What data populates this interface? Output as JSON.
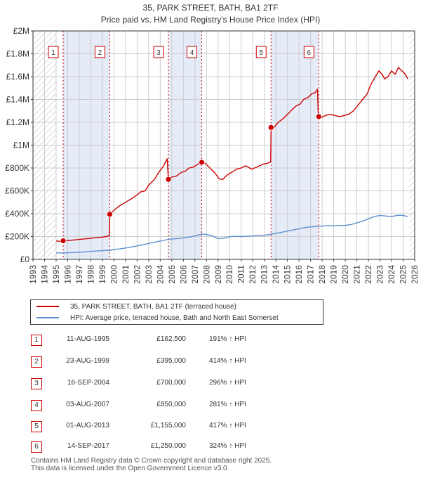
{
  "header": {
    "title": "35, PARK STREET, BATH, BA1 2TF",
    "subtitle": "Price paid vs. HM Land Registry's House Price Index (HPI)"
  },
  "colors": {
    "property": "#cc0000",
    "hpi": "#5b8fd0",
    "band": "#e6ebf8",
    "grid": "#cccccc",
    "axis": "#333333"
  },
  "chart_data": {
    "type": "line",
    "title": "Price paid vs. HM Land Registry's House Price Index (HPI)",
    "xlim": [
      1993,
      2026
    ],
    "ylim": [
      0,
      2000000
    ],
    "x_ticks": [
      "1993",
      "1994",
      "1995",
      "1996",
      "1997",
      "1998",
      "1999",
      "2000",
      "2001",
      "2002",
      "2003",
      "2004",
      "2005",
      "2006",
      "2007",
      "2008",
      "2009",
      "2010",
      "2011",
      "2012",
      "2013",
      "2014",
      "2015",
      "2016",
      "2017",
      "2018",
      "2019",
      "2020",
      "2021",
      "2022",
      "2023",
      "2024",
      "2025",
      "2026"
    ],
    "y_ticks": [
      {
        "value": 0,
        "label": "£0"
      },
      {
        "value": 200000,
        "label": "£200K"
      },
      {
        "value": 400000,
        "label": "£400K"
      },
      {
        "value": 600000,
        "label": "£600K"
      },
      {
        "value": 800000,
        "label": "£800K"
      },
      {
        "value": 1000000,
        "label": "£1M"
      },
      {
        "value": 1200000,
        "label": "£1.2M"
      },
      {
        "value": 1400000,
        "label": "£1.4M"
      },
      {
        "value": 1600000,
        "label": "£1.6M"
      },
      {
        "value": 1800000,
        "label": "£1.8M"
      },
      {
        "value": 2000000,
        "label": "£2M"
      }
    ],
    "bands": [
      [
        1995.61,
        1999.64
      ],
      [
        2004.71,
        2007.59
      ],
      [
        2013.58,
        2017.71
      ]
    ],
    "series": [
      {
        "name": "35, PARK STREET, BATH, BA1 2TF (terraced house)",
        "color": "#cc0000",
        "points": [
          [
            1995.0,
            162000
          ],
          [
            1995.3,
            158000
          ],
          [
            1995.61,
            162500
          ],
          [
            1996.0,
            165000
          ],
          [
            1996.5,
            170000
          ],
          [
            1997.0,
            175000
          ],
          [
            1997.5,
            180000
          ],
          [
            1998.0,
            185000
          ],
          [
            1998.5,
            190000
          ],
          [
            1999.0,
            195000
          ],
          [
            1999.6,
            205000
          ],
          [
            1999.64,
            395000
          ],
          [
            2000.0,
            430000
          ],
          [
            2000.5,
            470000
          ],
          [
            2001.0,
            500000
          ],
          [
            2001.5,
            530000
          ],
          [
            2002.0,
            565000
          ],
          [
            2002.3,
            590000
          ],
          [
            2002.7,
            600000
          ],
          [
            2003.0,
            650000
          ],
          [
            2003.5,
            700000
          ],
          [
            2003.8,
            750000
          ],
          [
            2004.0,
            780000
          ],
          [
            2004.3,
            820000
          ],
          [
            2004.6,
            880000
          ],
          [
            2004.65,
            800000
          ],
          [
            2004.71,
            700000
          ],
          [
            2005.0,
            720000
          ],
          [
            2005.4,
            730000
          ],
          [
            2005.8,
            760000
          ],
          [
            2006.2,
            775000
          ],
          [
            2006.5,
            800000
          ],
          [
            2006.9,
            810000
          ],
          [
            2007.2,
            830000
          ],
          [
            2007.59,
            850000
          ],
          [
            2007.9,
            840000
          ],
          [
            2008.3,
            800000
          ],
          [
            2008.7,
            760000
          ],
          [
            2009.1,
            705000
          ],
          [
            2009.4,
            700000
          ],
          [
            2009.8,
            740000
          ],
          [
            2010.3,
            770000
          ],
          [
            2010.6,
            790000
          ],
          [
            2011.0,
            800000
          ],
          [
            2011.4,
            820000
          ],
          [
            2011.9,
            790000
          ],
          [
            2012.4,
            810000
          ],
          [
            2012.8,
            830000
          ],
          [
            2013.2,
            840000
          ],
          [
            2013.5,
            850000
          ],
          [
            2013.55,
            860000
          ],
          [
            2013.58,
            1155000
          ],
          [
            2013.8,
            1150000
          ],
          [
            2014.2,
            1200000
          ],
          [
            2014.6,
            1230000
          ],
          [
            2015.0,
            1270000
          ],
          [
            2015.3,
            1300000
          ],
          [
            2015.7,
            1340000
          ],
          [
            2016.1,
            1360000
          ],
          [
            2016.4,
            1400000
          ],
          [
            2016.8,
            1420000
          ],
          [
            2017.1,
            1450000
          ],
          [
            2017.4,
            1460000
          ],
          [
            2017.6,
            1490000
          ],
          [
            2017.65,
            1300000
          ],
          [
            2017.71,
            1250000
          ],
          [
            2017.9,
            1240000
          ],
          [
            2018.3,
            1260000
          ],
          [
            2018.7,
            1270000
          ],
          [
            2019.1,
            1260000
          ],
          [
            2019.5,
            1250000
          ],
          [
            2019.9,
            1260000
          ],
          [
            2020.3,
            1270000
          ],
          [
            2020.7,
            1300000
          ],
          [
            2021.1,
            1350000
          ],
          [
            2021.5,
            1400000
          ],
          [
            2021.9,
            1450000
          ],
          [
            2022.2,
            1530000
          ],
          [
            2022.6,
            1600000
          ],
          [
            2022.9,
            1650000
          ],
          [
            2023.2,
            1620000
          ],
          [
            2023.4,
            1580000
          ],
          [
            2023.7,
            1600000
          ],
          [
            2024.0,
            1650000
          ],
          [
            2024.3,
            1620000
          ],
          [
            2024.6,
            1680000
          ],
          [
            2024.9,
            1650000
          ],
          [
            2025.2,
            1620000
          ],
          [
            2025.4,
            1580000
          ]
        ]
      },
      {
        "name": "HPI: Average price, terraced house, Bath and North East Somerset",
        "color": "#5b8fd0",
        "points": [
          [
            1995.0,
            57000
          ],
          [
            1995.61,
            56000
          ],
          [
            1996.0,
            58000
          ],
          [
            1996.5,
            60000
          ],
          [
            1997.0,
            63000
          ],
          [
            1997.5,
            66000
          ],
          [
            1998.0,
            70000
          ],
          [
            1998.5,
            73000
          ],
          [
            1999.0,
            76000
          ],
          [
            1999.64,
            80000
          ],
          [
            2000.0,
            86000
          ],
          [
            2000.5,
            92000
          ],
          [
            2001.0,
            100000
          ],
          [
            2001.5,
            108000
          ],
          [
            2002.0,
            118000
          ],
          [
            2002.5,
            128000
          ],
          [
            2003.0,
            140000
          ],
          [
            2003.5,
            150000
          ],
          [
            2004.0,
            160000
          ],
          [
            2004.71,
            175000
          ],
          [
            2005.0,
            178000
          ],
          [
            2005.5,
            182000
          ],
          [
            2006.0,
            188000
          ],
          [
            2006.5,
            195000
          ],
          [
            2007.0,
            205000
          ],
          [
            2007.59,
            222000
          ],
          [
            2008.0,
            218000
          ],
          [
            2008.5,
            205000
          ],
          [
            2009.0,
            182000
          ],
          [
            2009.5,
            185000
          ],
          [
            2010.0,
            198000
          ],
          [
            2010.5,
            202000
          ],
          [
            2011.0,
            200000
          ],
          [
            2011.5,
            202000
          ],
          [
            2012.0,
            205000
          ],
          [
            2012.5,
            210000
          ],
          [
            2013.0,
            212000
          ],
          [
            2013.58,
            220000
          ],
          [
            2014.0,
            228000
          ],
          [
            2014.5,
            237000
          ],
          [
            2015.0,
            248000
          ],
          [
            2015.5,
            258000
          ],
          [
            2016.0,
            268000
          ],
          [
            2016.5,
            278000
          ],
          [
            2017.0,
            285000
          ],
          [
            2017.71,
            290000
          ],
          [
            2018.0,
            292000
          ],
          [
            2018.5,
            295000
          ],
          [
            2019.0,
            294000
          ],
          [
            2019.5,
            296000
          ],
          [
            2020.0,
            298000
          ],
          [
            2020.5,
            305000
          ],
          [
            2021.0,
            320000
          ],
          [
            2021.5,
            335000
          ],
          [
            2022.0,
            355000
          ],
          [
            2022.5,
            375000
          ],
          [
            2023.0,
            385000
          ],
          [
            2023.5,
            380000
          ],
          [
            2024.0,
            375000
          ],
          [
            2024.5,
            385000
          ],
          [
            2025.0,
            385000
          ],
          [
            2025.4,
            375000
          ]
        ]
      }
    ],
    "sales": [
      {
        "x": 1995.61,
        "value": 162500,
        "label": "1"
      },
      {
        "x": 1999.64,
        "value": 395000,
        "label": "2"
      },
      {
        "x": 2004.71,
        "value": 700000,
        "label": "3"
      },
      {
        "x": 2007.59,
        "value": 850000,
        "label": "4"
      },
      {
        "x": 2013.58,
        "value": 1155000,
        "label": "5"
      },
      {
        "x": 2017.71,
        "value": 1250000,
        "label": "6"
      }
    ],
    "hatch_before": 1995.0,
    "hatch_after": 2025.5
  },
  "legend": {
    "property_label": "35, PARK STREET, BATH, BA1 2TF (terraced house)",
    "hpi_label": "HPI: Average price, terraced house, Bath and North East Somerset"
  },
  "transactions": [
    {
      "num": "1",
      "date": "11-AUG-1995",
      "price": "£162,500",
      "hpi": "191% ↑ HPI"
    },
    {
      "num": "2",
      "date": "23-AUG-1999",
      "price": "£395,000",
      "hpi": "414% ↑ HPI"
    },
    {
      "num": "3",
      "date": "16-SEP-2004",
      "price": "£700,000",
      "hpi": "296% ↑ HPI"
    },
    {
      "num": "4",
      "date": "03-AUG-2007",
      "price": "£850,000",
      "hpi": "281% ↑ HPI"
    },
    {
      "num": "5",
      "date": "01-AUG-2013",
      "price": "£1,155,000",
      "hpi": "417% ↑ HPI"
    },
    {
      "num": "6",
      "date": "14-SEP-2017",
      "price": "£1,250,000",
      "hpi": "324% ↑ HPI"
    }
  ],
  "footer": {
    "line1": "Contains HM Land Registry data © Crown copyright and database right 2025.",
    "line2": "This data is licensed under the Open Government Licence v3.0."
  }
}
